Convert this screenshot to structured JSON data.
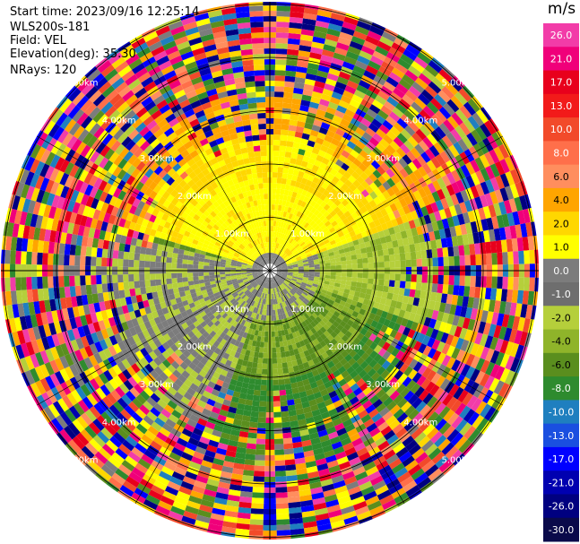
{
  "header": {
    "start_time": "Start time: 2023/09/16 12:25:14",
    "site": "WLS200s-181",
    "field": "Field: VEL",
    "elevation": "Elevation(deg): 35.30",
    "nrays": "NRays: 120"
  },
  "colorbar": {
    "unit": "m/s",
    "ticks": [
      "26.0",
      "21.0",
      "17.0",
      "13.0",
      "10.0",
      "8.0",
      "6.0",
      "4.0",
      "2.0",
      "1.0",
      "0.0",
      "-1.0",
      "-2.0",
      "-4.0",
      "-6.0",
      "-8.0",
      "-10.0",
      "-13.0",
      "-17.0",
      "-21.0",
      "-26.0",
      "-30.0"
    ],
    "colors": [
      "#f23ca8",
      "#f0007a",
      "#e8001c",
      "#f21a1a",
      "#f24a2a",
      "#ff6f4a",
      "#ff8e5e",
      "#ffa500",
      "#ffd700",
      "#ffff00",
      "#7c7c7c",
      "#6e6e6e",
      "#b5cf3b",
      "#8fb42a",
      "#5a8e1e",
      "#2e8b2e",
      "#1f7fbf",
      "#1a4fe0",
      "#0000ff",
      "#0000b0",
      "#000080",
      "#0a0a4a"
    ]
  },
  "range_rings": {
    "labels": [
      "1.00km",
      "2.00km",
      "3.00km",
      "4.00km",
      "5.00km"
    ]
  }
}
